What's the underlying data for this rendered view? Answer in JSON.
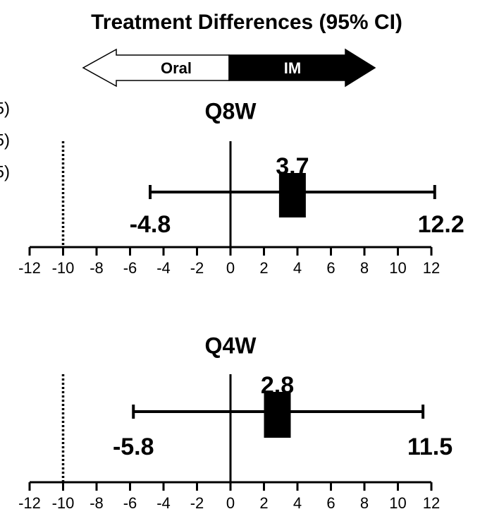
{
  "header": {
    "title": "Treatment Differences (95% CI)",
    "left_arrow": "Oral",
    "right_arrow": "IM"
  },
  "fragments": [
    "5)",
    "5)",
    "5)"
  ],
  "chart_data": [
    {
      "type": "forest",
      "title": "Q8W",
      "estimate": 3.7,
      "lower": -4.8,
      "upper": 12.2,
      "reference_line": -10,
      "xlim": [
        -12,
        12
      ],
      "xticks": [
        -12,
        -10,
        -8,
        -6,
        -4,
        -2,
        0,
        2,
        4,
        6,
        8,
        10,
        12
      ],
      "color": "#000000"
    },
    {
      "type": "forest",
      "title": "Q4W",
      "estimate": 2.8,
      "lower": -5.8,
      "upper": 11.5,
      "reference_line": -10,
      "xlim": [
        -12,
        12
      ],
      "xticks": [
        -12,
        -10,
        -8,
        -6,
        -4,
        -2,
        0,
        2,
        4,
        6,
        8,
        10,
        12
      ],
      "color": "#000000"
    }
  ]
}
